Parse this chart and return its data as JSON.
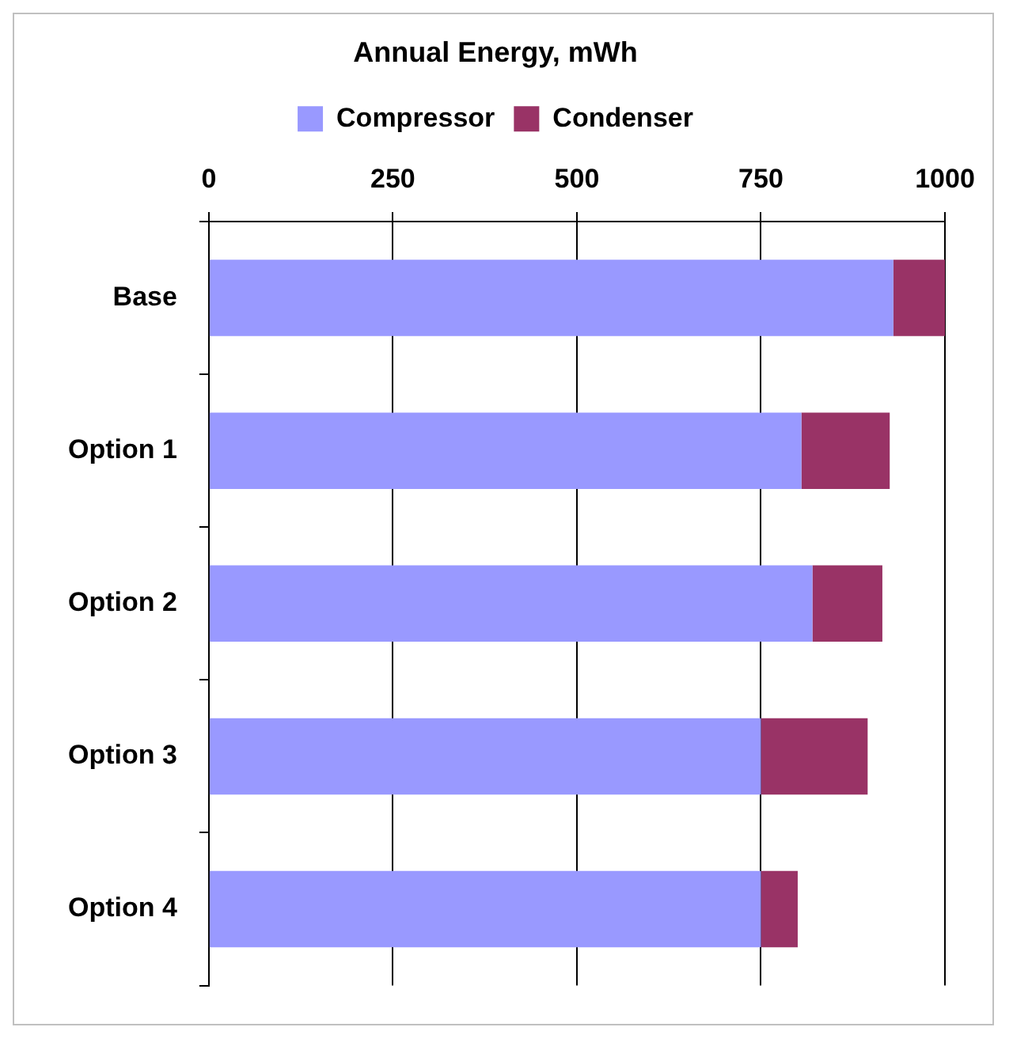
{
  "chart_data": {
    "type": "bar",
    "orientation": "horizontal",
    "stacked": true,
    "title": "Annual Energy, mWh",
    "categories": [
      "Base",
      "Option 1",
      "Option 2",
      "Option 3",
      "Option 4"
    ],
    "series": [
      {
        "name": "Compressor",
        "color": "#9999ff",
        "values": [
          930,
          805,
          820,
          750,
          750
        ]
      },
      {
        "name": "Condenser",
        "color": "#993366",
        "values": [
          70,
          120,
          95,
          145,
          50
        ]
      }
    ],
    "xlim": [
      0,
      1000
    ],
    "xticks": [
      0,
      250,
      500,
      750,
      1000
    ],
    "grid": "x",
    "legend": "top"
  }
}
